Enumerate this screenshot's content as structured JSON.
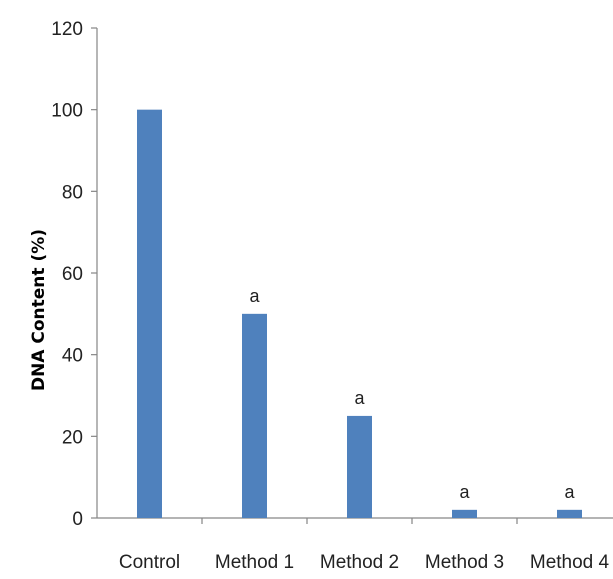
{
  "chart_data": {
    "type": "bar",
    "title": "",
    "xlabel": "",
    "ylabel": "DNA Content (%)",
    "categories": [
      "Control",
      "Method 1",
      "Method 2",
      "Method 3",
      "Method 4"
    ],
    "values": [
      100,
      50,
      25,
      2,
      2
    ],
    "annotations": [
      "",
      "a",
      "a",
      "a",
      "a"
    ],
    "ylim": [
      0,
      120
    ],
    "yticks": [
      0,
      20,
      40,
      60,
      80,
      100,
      120
    ],
    "grid": false,
    "legend": "none",
    "bar_color": "#4f81bd",
    "axis_color": "#868686"
  }
}
